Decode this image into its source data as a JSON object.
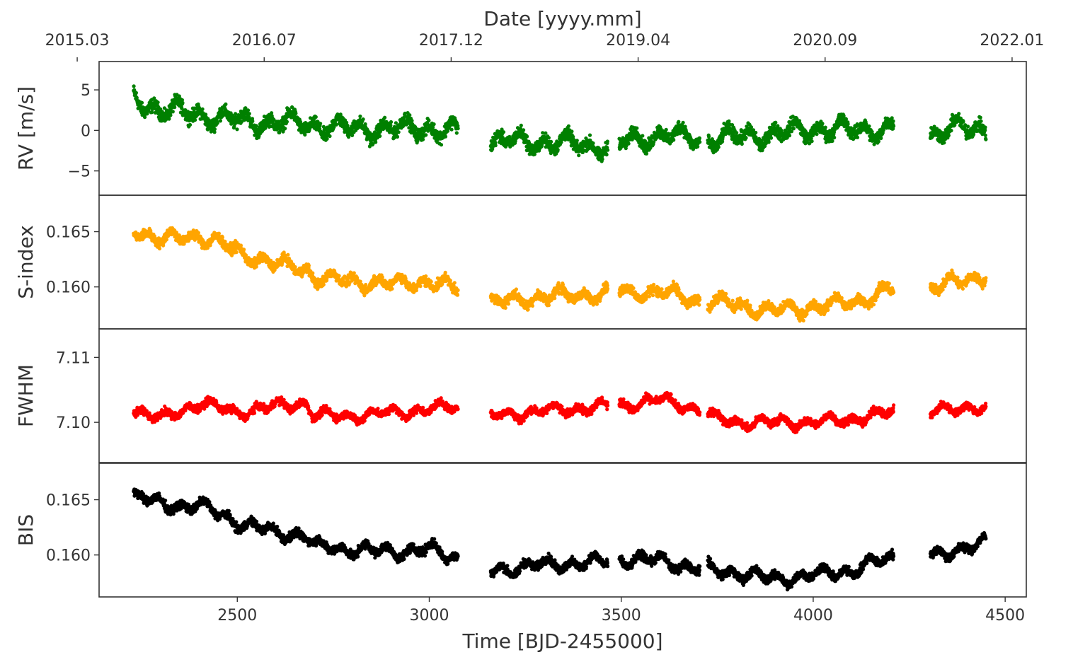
{
  "chart_data": {
    "type": "scatter",
    "xlabel": "Time [BJD-2455000]",
    "x_ticks": [
      2500,
      3000,
      3500,
      4000,
      4500
    ],
    "xlim": [
      2140,
      4555
    ],
    "top_axis": {
      "label": "Date [yyyy.mm]",
      "ticks": [
        {
          "x": 2083,
          "label": "2015.03"
        },
        {
          "x": 2570,
          "label": "2016.07"
        },
        {
          "x": 3057,
          "label": "2017.12"
        },
        {
          "x": 3544,
          "label": "2019.04"
        },
        {
          "x": 4031,
          "label": "2020.09"
        },
        {
          "x": 4518,
          "label": "2022.01"
        }
      ]
    },
    "data_gaps": [
      [
        3075,
        3160
      ],
      [
        3465,
        3495
      ],
      [
        3705,
        3725
      ],
      [
        4210,
        4305
      ]
    ],
    "panels": [
      {
        "ylabel": "RV [m/s]",
        "color": "#008000",
        "ylim": [
          -8.0,
          8.5
        ],
        "y_ticks": [
          {
            "v": 5,
            "label": "5"
          },
          {
            "v": 0,
            "label": "0"
          },
          {
            "v": -5,
            "label": "−5"
          }
        ],
        "trend": [
          [
            2230,
            4.0
          ],
          [
            2300,
            2.5
          ],
          [
            2400,
            2.0
          ],
          [
            2500,
            1.2
          ],
          [
            2600,
            1.0
          ],
          [
            2680,
            0.8
          ],
          [
            2700,
            0.6
          ],
          [
            2800,
            0.2
          ],
          [
            2900,
            0.2
          ],
          [
            3000,
            0.3
          ],
          [
            3070,
            -0.2
          ],
          [
            3165,
            -1.5
          ],
          [
            3250,
            -1.3
          ],
          [
            3350,
            -1.6
          ],
          [
            3460,
            -2.0
          ],
          [
            3500,
            -1.5
          ],
          [
            3600,
            -0.5
          ],
          [
            3700,
            -1.0
          ],
          [
            3725,
            -1.2
          ],
          [
            3800,
            -0.8
          ],
          [
            3900,
            -0.4
          ],
          [
            4000,
            0.2
          ],
          [
            4100,
            0.0
          ],
          [
            4205,
            0.3
          ],
          [
            4310,
            -0.5
          ],
          [
            4400,
            0.4
          ],
          [
            4450,
            0.3
          ]
        ],
        "spread": 2.2
      },
      {
        "ylabel": "S-index",
        "color": "#FFA500",
        "ylim": [
          0.1562,
          0.1683
        ],
        "y_ticks": [
          {
            "v": 0.165,
            "label": "0.165"
          },
          {
            "v": 0.16,
            "label": "0.160"
          }
        ],
        "trend": [
          [
            2230,
            0.1653
          ],
          [
            2300,
            0.1642
          ],
          [
            2400,
            0.1647
          ],
          [
            2500,
            0.1632
          ],
          [
            2600,
            0.162
          ],
          [
            2680,
            0.1617
          ],
          [
            2700,
            0.1608
          ],
          [
            2800,
            0.1605
          ],
          [
            2900,
            0.1603
          ],
          [
            3000,
            0.1605
          ],
          [
            3070,
            0.1598
          ],
          [
            3165,
            0.1585
          ],
          [
            3250,
            0.159
          ],
          [
            3350,
            0.1592
          ],
          [
            3460,
            0.1594
          ],
          [
            3500,
            0.1596
          ],
          [
            3600,
            0.1595
          ],
          [
            3700,
            0.1588
          ],
          [
            3725,
            0.1587
          ],
          [
            3800,
            0.1584
          ],
          [
            3900,
            0.1578
          ],
          [
            4000,
            0.1582
          ],
          [
            4100,
            0.1586
          ],
          [
            4205,
            0.1598
          ],
          [
            4310,
            0.1598
          ],
          [
            4400,
            0.1608
          ],
          [
            4450,
            0.161
          ]
        ],
        "spread": 0.0012
      },
      {
        "ylabel": "FWHM",
        "color": "#FF0000",
        "ylim": [
          7.0938,
          7.1144
        ],
        "y_ticks": [
          {
            "v": 7.11,
            "label": "7.11"
          },
          {
            "v": 7.1,
            "label": "7.10"
          }
        ],
        "trend": [
          [
            2230,
            7.102
          ],
          [
            2300,
            7.1005
          ],
          [
            2400,
            7.103
          ],
          [
            2500,
            7.1015
          ],
          [
            2600,
            7.1025
          ],
          [
            2680,
            7.103
          ],
          [
            2700,
            7.101
          ],
          [
            2800,
            7.101
          ],
          [
            2900,
            7.1015
          ],
          [
            3000,
            7.102
          ],
          [
            3070,
            7.1025
          ],
          [
            3165,
            7.101
          ],
          [
            3250,
            7.1015
          ],
          [
            3350,
            7.102
          ],
          [
            3460,
            7.1025
          ],
          [
            3500,
            7.1025
          ],
          [
            3600,
            7.1035
          ],
          [
            3700,
            7.102
          ],
          [
            3725,
            7.101
          ],
          [
            3800,
            7.1
          ],
          [
            3900,
            7.1
          ],
          [
            4000,
            7.1
          ],
          [
            4100,
            7.1005
          ],
          [
            4205,
            7.1015
          ],
          [
            4310,
            7.1015
          ],
          [
            4400,
            7.1025
          ],
          [
            4450,
            7.102
          ]
        ],
        "spread": 0.0016
      },
      {
        "ylabel": "BIS",
        "color": "#000000",
        "ylim": [
          0.1562,
          0.1683
        ],
        "y_ticks": [
          {
            "v": 0.165,
            "label": "0.165"
          },
          {
            "v": 0.16,
            "label": "0.160"
          }
        ],
        "trend": [
          [
            2230,
            0.1655
          ],
          [
            2300,
            0.1645
          ],
          [
            2400,
            0.1645
          ],
          [
            2500,
            0.163
          ],
          [
            2600,
            0.162
          ],
          [
            2680,
            0.1618
          ],
          [
            2700,
            0.1608
          ],
          [
            2800,
            0.1605
          ],
          [
            2900,
            0.1603
          ],
          [
            3000,
            0.1605
          ],
          [
            3070,
            0.1598
          ],
          [
            3165,
            0.1585
          ],
          [
            3250,
            0.159
          ],
          [
            3350,
            0.1592
          ],
          [
            3460,
            0.1594
          ],
          [
            3500,
            0.1596
          ],
          [
            3600,
            0.1595
          ],
          [
            3700,
            0.1588
          ],
          [
            3725,
            0.1587
          ],
          [
            3800,
            0.1584
          ],
          [
            3900,
            0.1578
          ],
          [
            4000,
            0.1582
          ],
          [
            4100,
            0.1586
          ],
          [
            4205,
            0.1598
          ],
          [
            4310,
            0.1598
          ],
          [
            4400,
            0.1608
          ],
          [
            4450,
            0.161
          ]
        ],
        "spread": 0.0011
      }
    ]
  }
}
